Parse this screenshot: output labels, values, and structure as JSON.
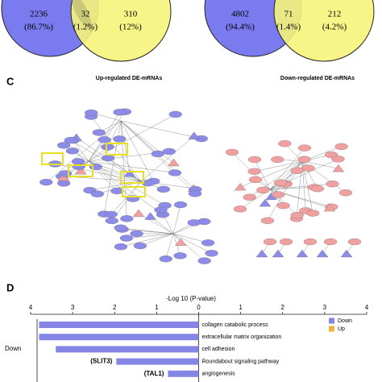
{
  "venns": [
    {
      "left_count": "2236",
      "left_pct": "(86.7%)",
      "mid_count": "32",
      "mid_pct": "(1.2%)",
      "right_count": "310",
      "right_pct": "(12%)",
      "label": "Up-regulated DE-mRNAs"
    },
    {
      "left_count": "4802",
      "left_pct": "(94.4%)",
      "mid_count": "71",
      "mid_pct": "(1.4%)",
      "right_count": "212",
      "right_pct": "(4.2%)",
      "label": "Down-regulated DE-mRNAs"
    }
  ],
  "panel_c": {
    "letter": "C"
  },
  "panel_d": {
    "letter": "D",
    "type": "bar",
    "axis_title": "-Log 10 (P-value)",
    "xlim": [
      -4,
      4
    ],
    "xticks": [
      {
        "value": -4,
        "label": "4"
      },
      {
        "value": -3,
        "label": "3"
      },
      {
        "value": -2,
        "label": "2"
      },
      {
        "value": -1,
        "label": "1"
      },
      0,
      1,
      2,
      3,
      4
    ],
    "group_label": "Down",
    "categories": [
      "collagen catabolic process",
      "extracellular matrix organization",
      "cell adhesion",
      "Roundabout signaling pathway",
      "angiogenesis"
    ],
    "annotations": [
      null,
      null,
      null,
      "(SLIT3)",
      "(TAL1)"
    ],
    "values": [
      -3.8,
      -3.8,
      -3.4,
      -1.96,
      -0.73
    ],
    "color": "#8585e6",
    "legend": [
      {
        "name": "Down",
        "color": "#8585e6"
      },
      {
        "name": "Up",
        "color": "#f0b43c"
      }
    ]
  }
}
